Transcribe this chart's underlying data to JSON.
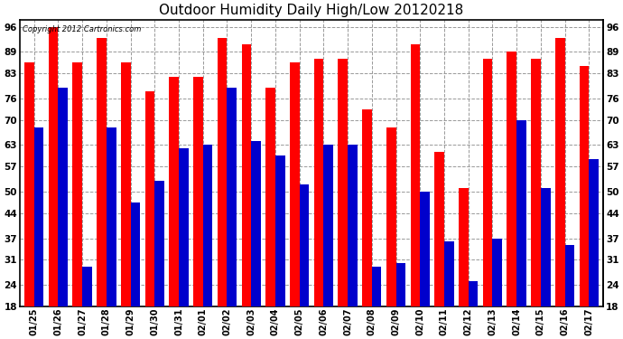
{
  "title": "Outdoor Humidity Daily High/Low 20120218",
  "copyright": "Copyright 2012 Cartronics.com",
  "dates": [
    "01/25",
    "01/26",
    "01/27",
    "01/28",
    "01/29",
    "01/30",
    "01/31",
    "02/01",
    "02/02",
    "02/03",
    "02/04",
    "02/05",
    "02/06",
    "02/07",
    "02/08",
    "02/09",
    "02/10",
    "02/11",
    "02/12",
    "02/13",
    "02/14",
    "02/15",
    "02/16",
    "02/17"
  ],
  "highs": [
    86,
    96,
    86,
    93,
    86,
    78,
    82,
    82,
    93,
    91,
    79,
    86,
    87,
    87,
    73,
    68,
    91,
    61,
    51,
    87,
    89,
    87,
    93,
    85
  ],
  "lows": [
    68,
    79,
    29,
    68,
    47,
    53,
    62,
    63,
    79,
    64,
    60,
    52,
    63,
    63,
    29,
    30,
    50,
    36,
    25,
    37,
    70,
    51,
    35,
    59
  ],
  "high_color": "#ff0000",
  "low_color": "#0000cc",
  "bg_color": "#ffffff",
  "plot_bg_color": "#ffffff",
  "grid_color": "#999999",
  "yticks": [
    18,
    24,
    31,
    37,
    44,
    50,
    57,
    63,
    70,
    76,
    83,
    89,
    96
  ],
  "ymin": 18,
  "ymax": 98,
  "title_fontsize": 11,
  "bar_width": 0.4
}
